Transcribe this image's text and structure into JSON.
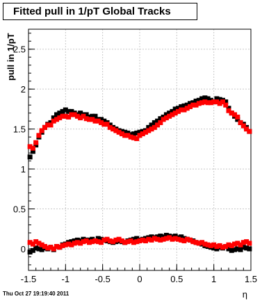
{
  "title": "Fitted pull in 1/pT  Global Tracks",
  "timestamp": "Thu Oct 27 19:19:40 2011",
  "colors": {
    "black_series": "#000000",
    "red_series": "#ff0000",
    "frame": "#000000",
    "grid": "#c8c8c8"
  },
  "chart_data": {
    "type": "scatter",
    "xlabel": "η",
    "ylabel": "pull in 1/pT",
    "xlim": [
      -1.5,
      1.5
    ],
    "ylim": [
      -0.27,
      2.75
    ],
    "grid": true,
    "x_ticks": [
      -1.5,
      -1,
      -0.5,
      0,
      0.5,
      1,
      1.5
    ],
    "x_tick_labels": [
      "-1.5",
      "-1",
      "-0.5",
      "0",
      "0.5",
      "1",
      "1.5"
    ],
    "y_ticks": [
      0,
      0.5,
      1,
      1.5,
      2,
      2.5
    ],
    "y_tick_labels": [
      "0",
      "0.5",
      "1",
      "1.5",
      "2",
      "2.5"
    ],
    "series": [
      {
        "marker": "square",
        "color": "black",
        "x": [
          -1.48,
          -1.44,
          -1.4,
          -1.36,
          -1.32,
          -1.28,
          -1.24,
          -1.2,
          -1.16,
          -1.12,
          -1.08,
          -1.04,
          -1.0,
          -0.96,
          -0.92,
          -0.88,
          -0.84,
          -0.8,
          -0.76,
          -0.72,
          -0.68,
          -0.64,
          -0.6,
          -0.56,
          -0.52,
          -0.48,
          -0.44,
          -0.4,
          -0.36,
          -0.32,
          -0.28,
          -0.24,
          -0.2,
          -0.16,
          -0.12,
          -0.08,
          -0.04,
          0.0,
          0.04,
          0.08,
          0.12,
          0.16,
          0.2,
          0.24,
          0.28,
          0.32,
          0.36,
          0.4,
          0.44,
          0.48,
          0.52,
          0.56,
          0.6,
          0.64,
          0.68,
          0.72,
          0.76,
          0.8,
          0.84,
          0.88,
          0.92,
          0.96,
          1.0,
          1.04,
          1.08,
          1.12,
          1.16,
          1.2,
          1.24,
          1.28,
          1.32,
          1.36,
          1.4,
          1.44,
          1.48
        ],
        "y": [
          1.15,
          1.22,
          1.3,
          1.4,
          1.46,
          1.52,
          1.56,
          1.58,
          1.64,
          1.68,
          1.7,
          1.72,
          1.74,
          1.72,
          1.72,
          1.7,
          1.68,
          1.7,
          1.68,
          1.68,
          1.65,
          1.66,
          1.66,
          1.62,
          1.62,
          1.6,
          1.58,
          1.55,
          1.52,
          1.5,
          1.48,
          1.47,
          1.46,
          1.45,
          1.43,
          1.44,
          1.45,
          1.46,
          1.47,
          1.48,
          1.52,
          1.55,
          1.58,
          1.6,
          1.63,
          1.65,
          1.68,
          1.7,
          1.72,
          1.75,
          1.76,
          1.78,
          1.79,
          1.8,
          1.82,
          1.83,
          1.85,
          1.86,
          1.88,
          1.89,
          1.88,
          1.86,
          1.84,
          1.88,
          1.87,
          1.86,
          1.84,
          1.76,
          1.7,
          1.66,
          1.62,
          1.58,
          1.56,
          1.52,
          1.47
        ]
      },
      {
        "marker": "square",
        "color": "red",
        "x": [
          -1.48,
          -1.44,
          -1.4,
          -1.36,
          -1.32,
          -1.28,
          -1.24,
          -1.2,
          -1.16,
          -1.12,
          -1.08,
          -1.04,
          -1.0,
          -0.96,
          -0.92,
          -0.88,
          -0.84,
          -0.8,
          -0.76,
          -0.72,
          -0.68,
          -0.64,
          -0.6,
          -0.56,
          -0.52,
          -0.48,
          -0.44,
          -0.4,
          -0.36,
          -0.32,
          -0.28,
          -0.24,
          -0.2,
          -0.16,
          -0.12,
          -0.08,
          -0.04,
          0.0,
          0.04,
          0.08,
          0.12,
          0.16,
          0.2,
          0.24,
          0.28,
          0.32,
          0.36,
          0.4,
          0.44,
          0.48,
          0.52,
          0.56,
          0.6,
          0.64,
          0.68,
          0.72,
          0.76,
          0.8,
          0.84,
          0.88,
          0.92,
          0.96,
          1.0,
          1.04,
          1.08,
          1.12,
          1.16,
          1.2,
          1.24,
          1.28,
          1.32,
          1.36,
          1.4,
          1.44,
          1.48
        ],
        "y": [
          1.28,
          1.26,
          1.33,
          1.42,
          1.48,
          1.52,
          1.55,
          1.55,
          1.6,
          1.62,
          1.64,
          1.66,
          1.66,
          1.65,
          1.68,
          1.68,
          1.66,
          1.64,
          1.66,
          1.63,
          1.62,
          1.62,
          1.6,
          1.6,
          1.58,
          1.56,
          1.56,
          1.52,
          1.5,
          1.48,
          1.46,
          1.44,
          1.42,
          1.42,
          1.4,
          1.39,
          1.38,
          1.42,
          1.44,
          1.46,
          1.48,
          1.5,
          1.52,
          1.55,
          1.58,
          1.62,
          1.64,
          1.66,
          1.68,
          1.7,
          1.72,
          1.74,
          1.74,
          1.76,
          1.78,
          1.8,
          1.8,
          1.82,
          1.83,
          1.84,
          1.83,
          1.83,
          1.84,
          1.84,
          1.82,
          1.84,
          1.8,
          1.73,
          1.7,
          1.68,
          1.65,
          1.58,
          1.54,
          1.5,
          1.47
        ]
      },
      {
        "marker": "square",
        "color": "black",
        "x": [
          -1.48,
          -1.44,
          -1.4,
          -1.36,
          -1.32,
          -1.28,
          -1.24,
          -1.2,
          -1.16,
          -1.12,
          -1.08,
          -1.04,
          -1.0,
          -0.96,
          -0.92,
          -0.88,
          -0.84,
          -0.8,
          -0.76,
          -0.72,
          -0.68,
          -0.64,
          -0.6,
          -0.56,
          -0.52,
          -0.48,
          -0.44,
          -0.4,
          -0.36,
          -0.32,
          -0.28,
          -0.24,
          -0.2,
          -0.16,
          -0.12,
          -0.08,
          -0.04,
          0.0,
          0.04,
          0.08,
          0.12,
          0.16,
          0.2,
          0.24,
          0.28,
          0.32,
          0.36,
          0.4,
          0.44,
          0.48,
          0.52,
          0.56,
          0.6,
          0.64,
          0.68,
          0.72,
          0.76,
          0.8,
          0.84,
          0.88,
          0.92,
          0.96,
          1.0,
          1.04,
          1.08,
          1.12,
          1.16,
          1.2,
          1.24,
          1.28,
          1.32,
          1.36,
          1.4,
          1.44,
          1.48
        ],
        "y": [
          -0.04,
          -0.02,
          0.01,
          0.0,
          -0.01,
          0.01,
          0.0,
          0.02,
          -0.01,
          0.03,
          0.02,
          0.05,
          0.06,
          0.08,
          0.09,
          0.1,
          0.11,
          0.1,
          0.12,
          0.11,
          0.11,
          0.12,
          0.1,
          0.13,
          0.12,
          0.11,
          0.1,
          0.09,
          0.08,
          0.09,
          0.1,
          0.09,
          0.08,
          0.1,
          0.11,
          0.12,
          0.13,
          0.11,
          0.12,
          0.13,
          0.14,
          0.15,
          0.14,
          0.15,
          0.16,
          0.15,
          0.17,
          0.16,
          0.15,
          0.16,
          0.14,
          0.15,
          0.13,
          0.12,
          0.11,
          0.1,
          0.08,
          0.07,
          0.06,
          0.04,
          0.03,
          0.02,
          0.01,
          0.0,
          0.02,
          0.01,
          0.03,
          0.0,
          -0.02,
          -0.01,
          0.0,
          -0.01,
          0.02,
          0.01,
          0.0
        ]
      },
      {
        "marker": "square",
        "color": "red",
        "x": [
          -1.48,
          -1.44,
          -1.4,
          -1.36,
          -1.32,
          -1.28,
          -1.24,
          -1.2,
          -1.16,
          -1.12,
          -1.08,
          -1.04,
          -1.0,
          -0.96,
          -0.92,
          -0.88,
          -0.84,
          -0.8,
          -0.76,
          -0.72,
          -0.68,
          -0.64,
          -0.6,
          -0.56,
          -0.52,
          -0.48,
          -0.44,
          -0.4,
          -0.36,
          -0.32,
          -0.28,
          -0.24,
          -0.2,
          -0.16,
          -0.12,
          -0.08,
          -0.04,
          0.0,
          0.04,
          0.08,
          0.12,
          0.16,
          0.2,
          0.24,
          0.28,
          0.32,
          0.36,
          0.4,
          0.44,
          0.48,
          0.52,
          0.56,
          0.6,
          0.64,
          0.68,
          0.72,
          0.76,
          0.8,
          0.84,
          0.88,
          0.92,
          0.96,
          1.0,
          1.04,
          1.08,
          1.12,
          1.16,
          1.2,
          1.24,
          1.28,
          1.32,
          1.36,
          1.4,
          1.44,
          1.48
        ],
        "y": [
          0.08,
          0.06,
          0.09,
          0.07,
          0.05,
          0.03,
          0.01,
          0.02,
          0.0,
          0.03,
          0.02,
          0.04,
          0.05,
          0.06,
          0.05,
          0.07,
          0.08,
          0.07,
          0.09,
          0.1,
          0.08,
          0.09,
          0.1,
          0.09,
          0.08,
          0.11,
          0.12,
          0.1,
          0.09,
          0.11,
          0.12,
          0.1,
          0.08,
          0.09,
          0.1,
          0.08,
          0.09,
          0.1,
          0.11,
          0.1,
          0.12,
          0.11,
          0.13,
          0.12,
          0.11,
          0.12,
          0.13,
          0.14,
          0.12,
          0.13,
          0.12,
          0.11,
          0.1,
          0.12,
          0.11,
          0.09,
          0.08,
          0.07,
          0.08,
          0.06,
          0.05,
          0.04,
          0.05,
          0.03,
          0.04,
          0.02,
          0.03,
          0.05,
          0.04,
          0.06,
          0.07,
          0.05,
          0.08,
          0.09,
          0.07
        ]
      }
    ]
  }
}
